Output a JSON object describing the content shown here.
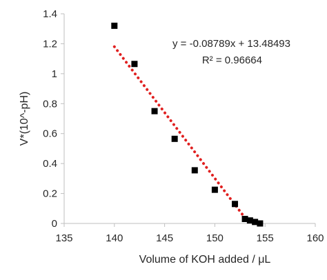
{
  "chart_data": {
    "type": "scatter",
    "xlabel": "Volume of KOH added / μL",
    "ylabel": "V*(10^-pH)",
    "xlim": [
      135,
      160
    ],
    "ylim": [
      0,
      1.4
    ],
    "x_ticks": [
      "135",
      "140",
      "145",
      "150",
      "155",
      "160"
    ],
    "y_ticks": [
      "0",
      "0.2",
      "0.4",
      "0.6",
      "0.8",
      "1",
      "1.2",
      "1.4"
    ],
    "grid": false,
    "legend": "none",
    "series": [
      {
        "marker": "square",
        "color": "#000000",
        "x": [
          140,
          142,
          144,
          146,
          148,
          150,
          152,
          153,
          153.5,
          154,
          154.5
        ],
        "y": [
          1.32,
          1.065,
          0.75,
          0.565,
          0.355,
          0.225,
          0.13,
          0.03,
          0.02,
          0.01,
          0.0
        ]
      }
    ],
    "trendline": {
      "type": "linear",
      "slope": -0.08789,
      "intercept": 13.48493,
      "x_range": [
        140,
        153
      ],
      "color": "#e02020",
      "style": "dotted",
      "equation_label": "y = -0.08789x + 13.48493",
      "r2_label": "R² = 0.96664"
    }
  }
}
